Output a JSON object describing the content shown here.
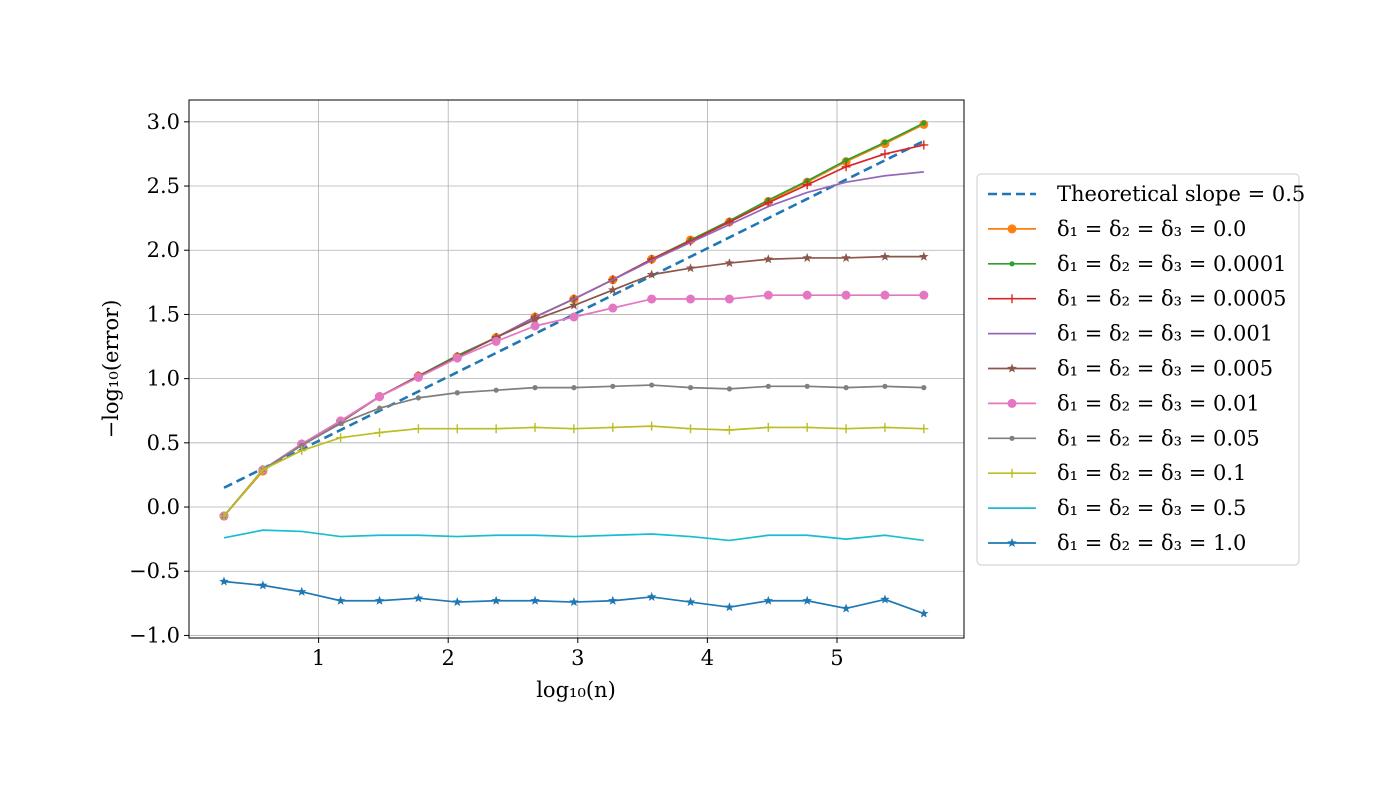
{
  "chart_data": {
    "type": "line",
    "xlabel": "log₁₀(n)",
    "ylabel": "−log₁₀(error)",
    "xlim": [
      0.0,
      5.98
    ],
    "ylim": [
      -1.02,
      3.17
    ],
    "xticks": [
      1,
      2,
      3,
      4,
      5
    ],
    "xtick_labels": [
      "1",
      "2",
      "3",
      "4",
      "5"
    ],
    "yticks": [
      -1.0,
      -0.5,
      0.0,
      0.5,
      1.0,
      1.5,
      2.0,
      2.5,
      3.0
    ],
    "ytick_labels": [
      "−1.0",
      "−0.5",
      "0.0",
      "0.5",
      "1.0",
      "1.5",
      "2.0",
      "2.5",
      "3.0"
    ],
    "grid": true,
    "legend_position": "right",
    "x": [
      0.27,
      0.57,
      0.87,
      1.17,
      1.47,
      1.77,
      2.07,
      2.37,
      2.67,
      2.97,
      3.27,
      3.57,
      3.87,
      4.17,
      4.47,
      4.77,
      5.07,
      5.37,
      5.67
    ],
    "series": [
      {
        "name": "Theoretical slope = 0.5",
        "color": "#1f77b4",
        "dashed": true,
        "marker": "none",
        "x": [
          0.27,
          5.67
        ],
        "values": [
          0.15,
          2.85
        ]
      },
      {
        "name": "δ₁ = δ₂ = δ₃ = 0.0",
        "color": "#ff7f0e",
        "marker": "circle",
        "values": [
          -0.07,
          0.28,
          0.49,
          0.67,
          0.86,
          1.02,
          1.17,
          1.32,
          1.48,
          1.62,
          1.77,
          1.93,
          2.08,
          2.22,
          2.38,
          2.53,
          2.69,
          2.83,
          2.98
        ]
      },
      {
        "name": "δ₁ = δ₂ = δ₃ = 0.0001",
        "color": "#2ca02c",
        "marker": "point",
        "values": [
          -0.07,
          0.29,
          0.49,
          0.67,
          0.86,
          1.02,
          1.18,
          1.32,
          1.48,
          1.62,
          1.77,
          1.93,
          2.08,
          2.23,
          2.39,
          2.54,
          2.7,
          2.84,
          2.99
        ]
      },
      {
        "name": "δ₁ = δ₂ = δ₃ = 0.0005",
        "color": "#d62728",
        "marker": "plus",
        "values": [
          -0.07,
          0.29,
          0.49,
          0.67,
          0.86,
          1.02,
          1.17,
          1.32,
          1.48,
          1.62,
          1.77,
          1.93,
          2.07,
          2.22,
          2.37,
          2.51,
          2.65,
          2.75,
          2.82
        ]
      },
      {
        "name": "δ₁ = δ₂ = δ₃ = 0.001",
        "color": "#9467bd",
        "marker": "none",
        "values": [
          -0.07,
          0.29,
          0.49,
          0.67,
          0.86,
          1.02,
          1.17,
          1.32,
          1.48,
          1.62,
          1.77,
          1.92,
          2.06,
          2.2,
          2.34,
          2.45,
          2.53,
          2.58,
          2.61
        ]
      },
      {
        "name": "δ₁ = δ₂ = δ₃ = 0.005",
        "color": "#8c564b",
        "marker": "star",
        "values": [
          -0.07,
          0.29,
          0.49,
          0.66,
          0.86,
          1.02,
          1.17,
          1.32,
          1.46,
          1.57,
          1.69,
          1.81,
          1.86,
          1.9,
          1.93,
          1.94,
          1.94,
          1.95,
          1.95
        ]
      },
      {
        "name": "δ₁ = δ₂ = δ₃ = 0.01",
        "color": "#e377c2",
        "marker": "circle",
        "values": [
          -0.07,
          0.29,
          0.49,
          0.67,
          0.86,
          1.01,
          1.16,
          1.29,
          1.41,
          1.48,
          1.55,
          1.62,
          1.62,
          1.62,
          1.65,
          1.65,
          1.65,
          1.65,
          1.65
        ]
      },
      {
        "name": "δ₁ = δ₂ = δ₃ = 0.05",
        "color": "#7f7f7f",
        "marker": "point",
        "values": [
          -0.07,
          0.29,
          0.48,
          0.65,
          0.77,
          0.85,
          0.89,
          0.91,
          0.93,
          0.93,
          0.94,
          0.95,
          0.93,
          0.92,
          0.94,
          0.94,
          0.93,
          0.94,
          0.93
        ]
      },
      {
        "name": "δ₁ = δ₂ = δ₃ = 0.1",
        "color": "#bcbd22",
        "marker": "plus",
        "values": [
          -0.07,
          0.29,
          0.44,
          0.54,
          0.58,
          0.61,
          0.61,
          0.61,
          0.62,
          0.61,
          0.62,
          0.63,
          0.61,
          0.6,
          0.62,
          0.62,
          0.61,
          0.62,
          0.61
        ]
      },
      {
        "name": "δ₁ = δ₂ = δ₃ = 0.5",
        "color": "#17becf",
        "marker": "none",
        "values": [
          -0.24,
          -0.18,
          -0.19,
          -0.23,
          -0.22,
          -0.22,
          -0.23,
          -0.22,
          -0.22,
          -0.23,
          -0.22,
          -0.21,
          -0.23,
          -0.26,
          -0.22,
          -0.22,
          -0.25,
          -0.22,
          -0.26
        ]
      },
      {
        "name": "δ₁ = δ₂ = δ₃ = 1.0",
        "color": "#1f77b4",
        "marker": "star",
        "values": [
          -0.58,
          -0.61,
          -0.66,
          -0.73,
          -0.73,
          -0.71,
          -0.74,
          -0.73,
          -0.73,
          -0.74,
          -0.73,
          -0.7,
          -0.74,
          -0.78,
          -0.73,
          -0.73,
          -0.79,
          -0.72,
          -0.83
        ]
      }
    ]
  }
}
